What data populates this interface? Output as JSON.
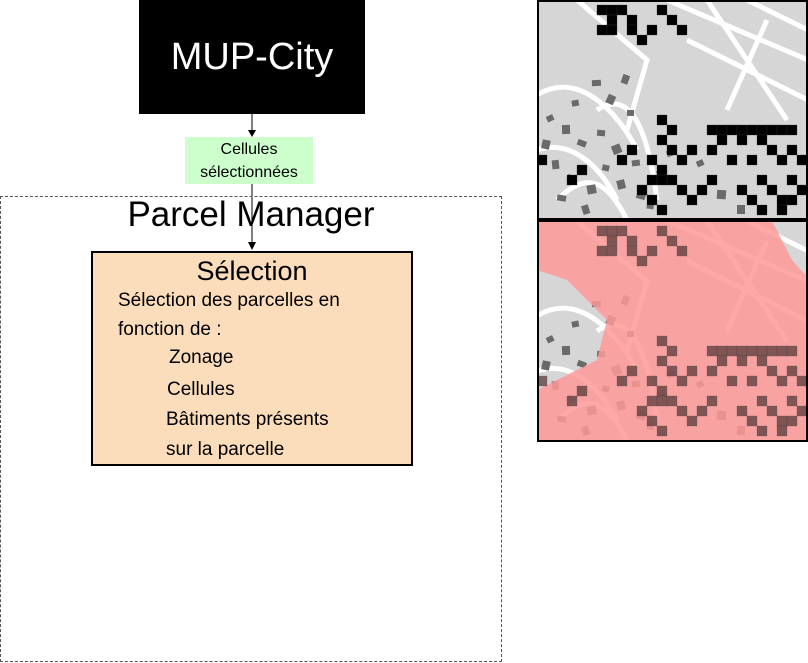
{
  "top_module": {
    "label": "MUP-City"
  },
  "flow_label": {
    "line1": "Cellules",
    "line2": "sélectionnées"
  },
  "manager": {
    "title": "Parcel Manager"
  },
  "selection": {
    "title": "Sélection",
    "description_line1": "Sélection des parcelles en",
    "description_line2": "fonction de :",
    "criteria": [
      "Zonage",
      "Cellules",
      "Bâtiments présents",
      "sur la parcelle"
    ]
  },
  "colors": {
    "module_fill": "#000000",
    "label_fill": "#ccffcc",
    "selection_fill": "#fbddbb",
    "zoning_overlay": "#ff9999",
    "cell_fill": "#000000"
  },
  "maps": [
    {
      "name": "selected-cells-map"
    },
    {
      "name": "zoning-overlay-map"
    }
  ]
}
